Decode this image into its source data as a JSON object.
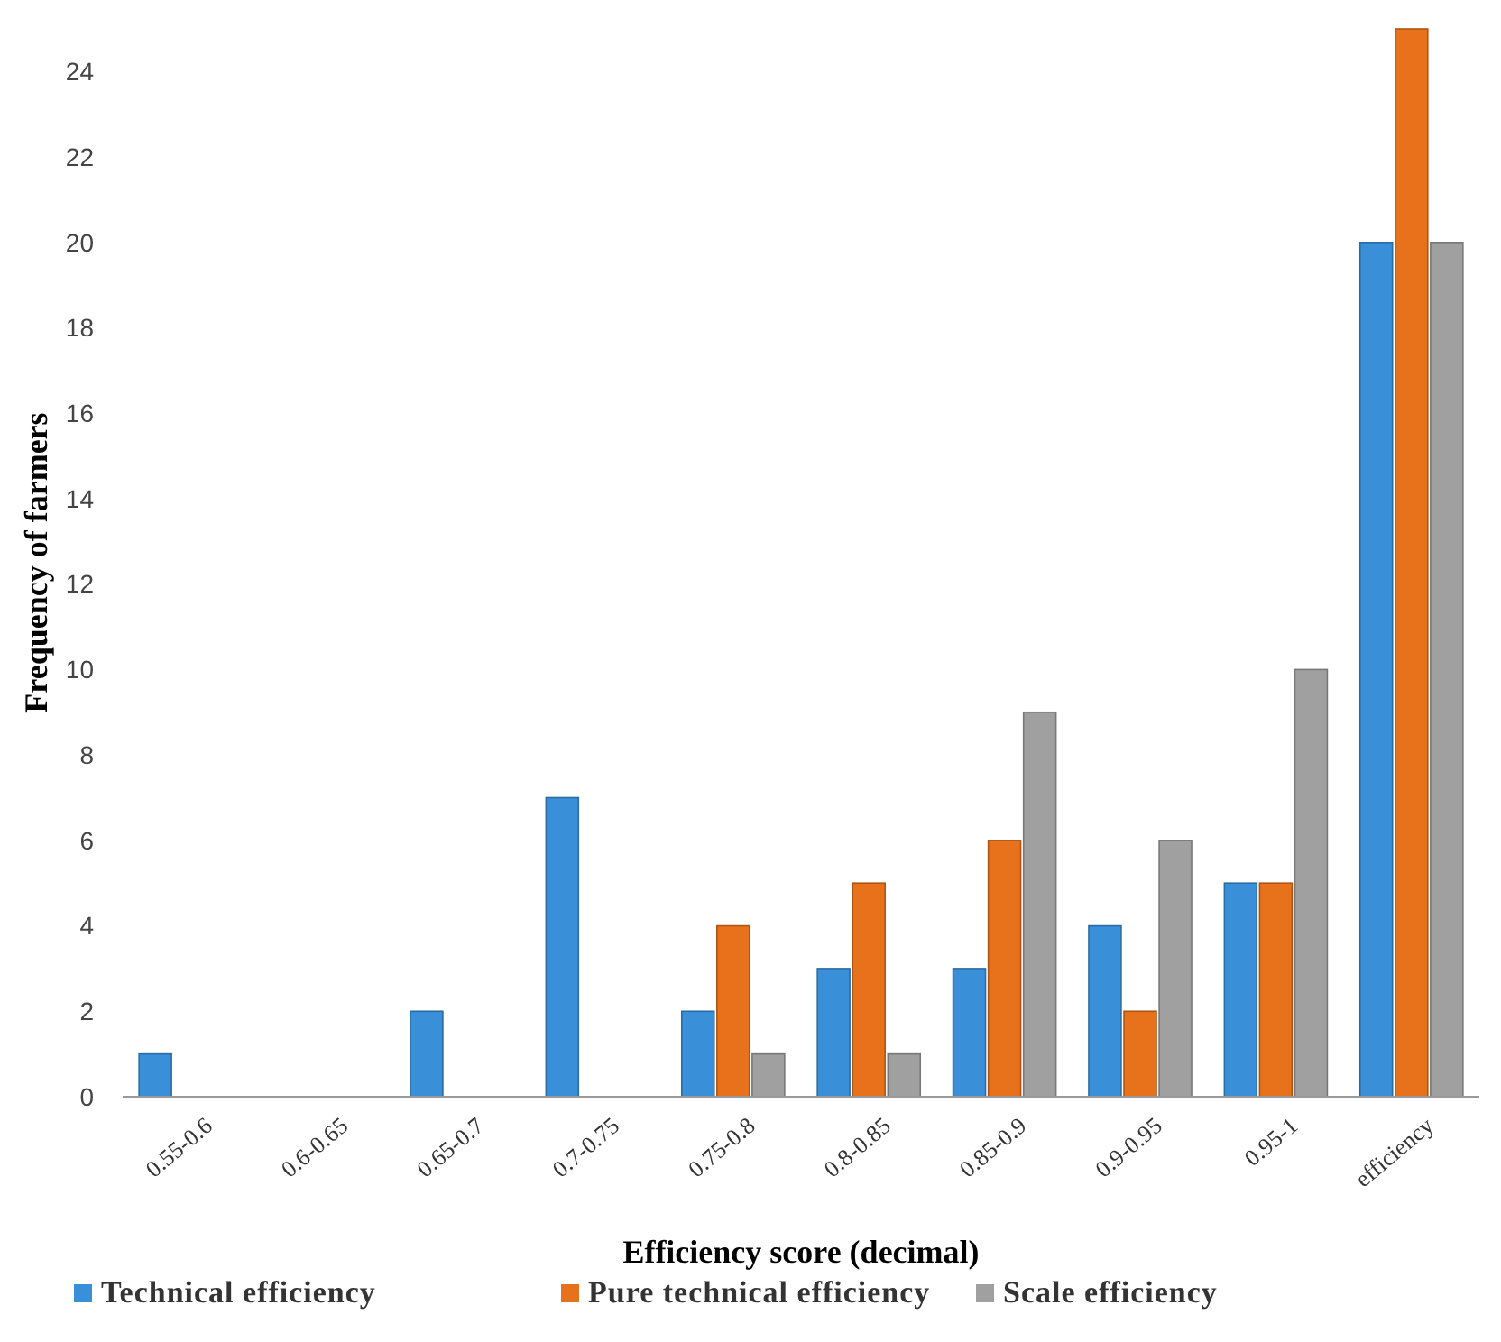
{
  "chart_data": {
    "type": "bar",
    "xlabel": "Efficiency score (decimal)",
    "ylabel": "Frequency of farmers",
    "categories": [
      "0.55-0.6",
      "0.6-0.65",
      "0.65-0.7",
      "0.7-0.75",
      "0.75-0.8",
      "0.8-0.85",
      "0.85-0.9",
      "0.9-0.95",
      "0.95-1",
      "efficiency"
    ],
    "series": [
      {
        "name": "Technical efficiency",
        "color": "#3a8fd9",
        "values": [
          1,
          0,
          2,
          7,
          2,
          3,
          3,
          4,
          5,
          20
        ]
      },
      {
        "name": "Pure technical efficiency",
        "color": "#e8711b",
        "values": [
          0,
          0,
          0,
          0,
          4,
          5,
          6,
          2,
          5,
          25
        ]
      },
      {
        "name": "Scale efficiency",
        "color": "#a0a0a0",
        "values": [
          0,
          0,
          0,
          0,
          1,
          1,
          9,
          6,
          10,
          20
        ]
      }
    ],
    "ylim": [
      0,
      25
    ],
    "yticks": [
      0,
      2,
      4,
      6,
      8,
      10,
      12,
      14,
      16,
      18,
      20,
      22,
      24
    ],
    "grid": false,
    "legend": "bottom"
  }
}
